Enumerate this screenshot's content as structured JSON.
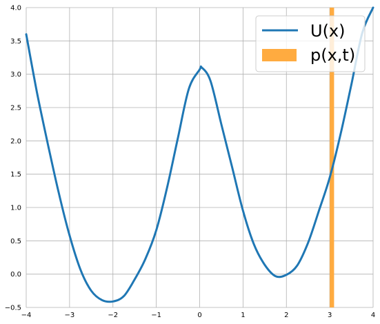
{
  "chart_data": {
    "type": "line",
    "xlim": [
      -4,
      4
    ],
    "ylim": [
      -0.5,
      4.0
    ],
    "xticks": [
      "−4",
      "−3",
      "−2",
      "−1",
      "0",
      "1",
      "2",
      "3",
      "4"
    ],
    "yticks": [
      "−0.5",
      "0.0",
      "0.5",
      "1.0",
      "1.5",
      "2.0",
      "2.5",
      "3.0",
      "3.5",
      "4.0"
    ],
    "grid": true,
    "legend_position": "top-right",
    "series": [
      {
        "name": "U(x)",
        "type": "line",
        "color": "#1f77b4",
        "x": [
          -4.0,
          -3.75,
          -3.5,
          -3.25,
          -3.0,
          -2.75,
          -2.5,
          -2.25,
          -2.0,
          -1.75,
          -1.5,
          -1.25,
          -1.0,
          -0.75,
          -0.5,
          -0.25,
          0.0,
          0.05,
          0.25,
          0.5,
          0.75,
          1.0,
          1.25,
          1.5,
          1.75,
          2.0,
          2.25,
          2.5,
          2.75,
          3.0,
          3.25,
          3.5,
          3.75,
          4.0
        ],
        "y": [
          3.6,
          2.72,
          1.95,
          1.22,
          0.58,
          0.07,
          -0.25,
          -0.39,
          -0.41,
          -0.33,
          -0.08,
          0.23,
          0.66,
          1.3,
          2.05,
          2.78,
          3.07,
          3.1,
          2.9,
          2.25,
          1.6,
          0.95,
          0.45,
          0.14,
          -0.03,
          -0.01,
          0.13,
          0.47,
          0.95,
          1.45,
          2.1,
          2.85,
          3.62,
          4.0
        ]
      },
      {
        "name": "p(x,t)",
        "type": "bar",
        "color": "#ffab40",
        "x": 3.05,
        "value": 4.0
      }
    ]
  }
}
